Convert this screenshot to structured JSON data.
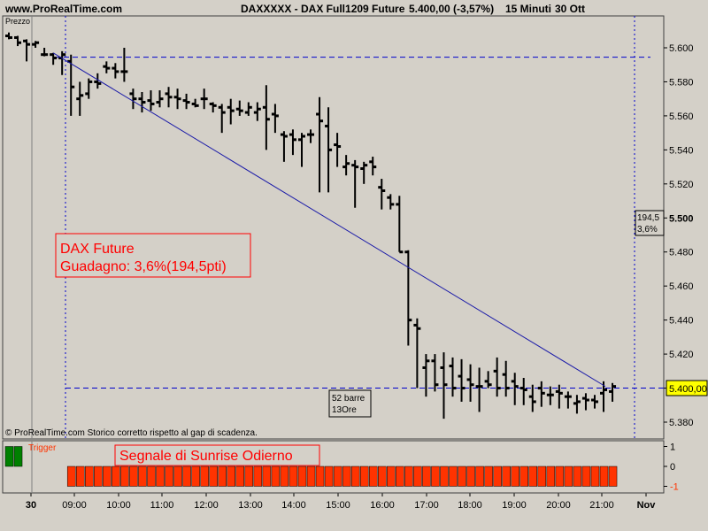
{
  "header": {
    "site": "www.ProRealTime.com",
    "instrument": "DAXXXXX - DAX Full1209 Future",
    "quote": "5.400,00 (-3,57%)",
    "timeframe": "15 Minuti",
    "date": "30 Ott"
  },
  "panel_label": "Prezzo",
  "copyright": "© ProRealTime.com  Storico corretto rispetto al gap di scadenza.",
  "annotations": {
    "gain_line1": "DAX Future",
    "gain_line2": "Guadagno: 3,6%(194,5pti)",
    "bars_line1": "52 barre",
    "bars_line2": "13Ore",
    "right_tag_line1": "194,5",
    "right_tag_line2": "3,6%",
    "last_price": "5.400,00"
  },
  "indicator": {
    "legend": "Trigger",
    "title": "Segnale di Sunrise Odierno",
    "ticks": [
      "1",
      "0",
      "-1"
    ]
  },
  "colors": {
    "background": "#d4d0c8",
    "bars": "#000000",
    "trendline": "#1a1aa8",
    "dashed": "#0000cc",
    "annotation_red": "#ff0000",
    "indicator_red": "#ff3300",
    "indicator_green": "#008000"
  },
  "chart_data": [
    {
      "type": "ohlc",
      "title": "DAXXXXX - DAX Full1209 Future",
      "x_tick_labels": [
        "30",
        "09:00",
        "10:00",
        "11:00",
        "12:00",
        "13:00",
        "14:00",
        "15:00",
        "16:00",
        "17:00",
        "18:00",
        "19:00",
        "20:00",
        "21:00",
        "Nov"
      ],
      "y_tick_labels": [
        "5.600",
        "5.580",
        "5.560",
        "5.540",
        "5.520",
        "5.500",
        "5.480",
        "5.460",
        "5.440",
        "5.420",
        "5.400",
        "5.380"
      ],
      "ylim": [
        5372,
        5620
      ],
      "ohlc": [
        [
          5607,
          5609,
          5605,
          5606
        ],
        [
          5606,
          5607,
          5601,
          5603
        ],
        [
          5604,
          5605,
          5592,
          5602
        ],
        [
          5602,
          5604,
          5600,
          5603
        ],
        [
          5596,
          5600,
          5595,
          5596
        ],
        [
          5596,
          5597,
          5590,
          5594
        ],
        [
          5594,
          5598,
          5584,
          5596
        ],
        [
          5592,
          5596,
          5560,
          5577
        ],
        [
          5570,
          5580,
          5560,
          5572
        ],
        [
          5573,
          5582,
          5570,
          5580
        ],
        [
          5580,
          5585,
          5576,
          5579
        ],
        [
          5589,
          5592,
          5585,
          5588
        ],
        [
          5588,
          5591,
          5582,
          5586
        ],
        [
          5586,
          5600,
          5580,
          5586
        ],
        [
          5573,
          5576,
          5564,
          5570
        ],
        [
          5570,
          5574,
          5562,
          5568
        ],
        [
          5569,
          5575,
          5563,
          5567
        ],
        [
          5568,
          5575,
          5565,
          5570
        ],
        [
          5573,
          5577,
          5565,
          5571
        ],
        [
          5571,
          5576,
          5564,
          5570
        ],
        [
          5569,
          5573,
          5564,
          5568
        ],
        [
          5567,
          5570,
          5565,
          5566
        ],
        [
          5570,
          5576,
          5564,
          5570
        ],
        [
          5567,
          5568,
          5562,
          5566
        ],
        [
          5565,
          5567,
          5550,
          5562
        ],
        [
          5565,
          5570,
          5555,
          5563
        ],
        [
          5564,
          5569,
          5560,
          5563
        ],
        [
          5562,
          5568,
          5560,
          5565
        ],
        [
          5562,
          5568,
          5557,
          5564
        ],
        [
          5565,
          5578,
          5540,
          5558
        ],
        [
          5561,
          5567,
          5550,
          5560
        ],
        [
          5549,
          5551,
          5533,
          5548
        ],
        [
          5549,
          5552,
          5537,
          5546
        ],
        [
          5546,
          5550,
          5530,
          5548
        ],
        [
          5549,
          5552,
          5544,
          5549
        ],
        [
          5561,
          5571,
          5515,
          5557
        ],
        [
          5554,
          5565,
          5515,
          5540
        ],
        [
          5543,
          5550,
          5530,
          5542
        ],
        [
          5530,
          5537,
          5525,
          5532
        ],
        [
          5531,
          5534,
          5506,
          5530
        ],
        [
          5529,
          5533,
          5520,
          5531
        ],
        [
          5533,
          5536,
          5525,
          5530
        ],
        [
          5518,
          5523,
          5505,
          5516
        ],
        [
          5512,
          5514,
          5505,
          5508
        ],
        [
          5508,
          5513,
          5480,
          5480
        ],
        [
          5480,
          5481,
          5425,
          5440
        ],
        [
          5437,
          5441,
          5400,
          5435
        ],
        [
          5412,
          5420,
          5395,
          5416
        ],
        [
          5416,
          5420,
          5398,
          5402
        ],
        [
          5412,
          5421,
          5382,
          5402
        ],
        [
          5413,
          5418,
          5395,
          5400
        ],
        [
          5407,
          5417,
          5392,
          5400
        ],
        [
          5405,
          5414,
          5392,
          5402
        ],
        [
          5401,
          5412,
          5386,
          5401
        ],
        [
          5404,
          5410,
          5400,
          5402
        ],
        [
          5410,
          5418,
          5395,
          5400
        ],
        [
          5408,
          5416,
          5395,
          5400
        ],
        [
          5404,
          5409,
          5390,
          5401
        ],
        [
          5400,
          5406,
          5390,
          5399
        ],
        [
          5395,
          5402,
          5386,
          5392
        ],
        [
          5400,
          5404,
          5389,
          5397
        ],
        [
          5396,
          5401,
          5390,
          5396
        ],
        [
          5398,
          5402,
          5388,
          5397
        ],
        [
          5395,
          5398,
          5388,
          5395
        ],
        [
          5391,
          5396,
          5385,
          5392
        ],
        [
          5394,
          5397,
          5387,
          5393
        ],
        [
          5393,
          5396,
          5388,
          5392
        ],
        [
          5397,
          5404,
          5386,
          5399
        ],
        [
          5398,
          5403,
          5392,
          5401
        ]
      ],
      "trendline": {
        "from": [
          5,
          5597
        ],
        "to": [
          67,
          5401
        ]
      },
      "dashed_levels": [
        5594.5,
        5400
      ]
    },
    {
      "type": "bar",
      "title": "Segnale di Sunrise Odierno",
      "series_name": "Trigger",
      "ylim": [
        -1,
        1
      ],
      "values": [
        1,
        1,
        0,
        0,
        0,
        0,
        0,
        -1,
        -1,
        -1,
        -1,
        -1,
        -1,
        -1,
        -1,
        -1,
        -1,
        -1,
        -1,
        -1,
        -1,
        -1,
        -1,
        -1,
        -1,
        -1,
        -1,
        -1,
        -1,
        -1,
        -1,
        -1,
        -1,
        -1,
        -1,
        -1,
        -1,
        -1,
        -1,
        -1,
        -1,
        -1,
        -1,
        -1,
        -1,
        -1,
        -1,
        -1,
        -1,
        -1,
        -1,
        -1,
        -1,
        -1,
        -1,
        -1,
        -1,
        -1,
        -1,
        -1,
        -1,
        -1,
        -1,
        -1,
        -1,
        -1,
        -1,
        -1,
        -1
      ]
    }
  ]
}
